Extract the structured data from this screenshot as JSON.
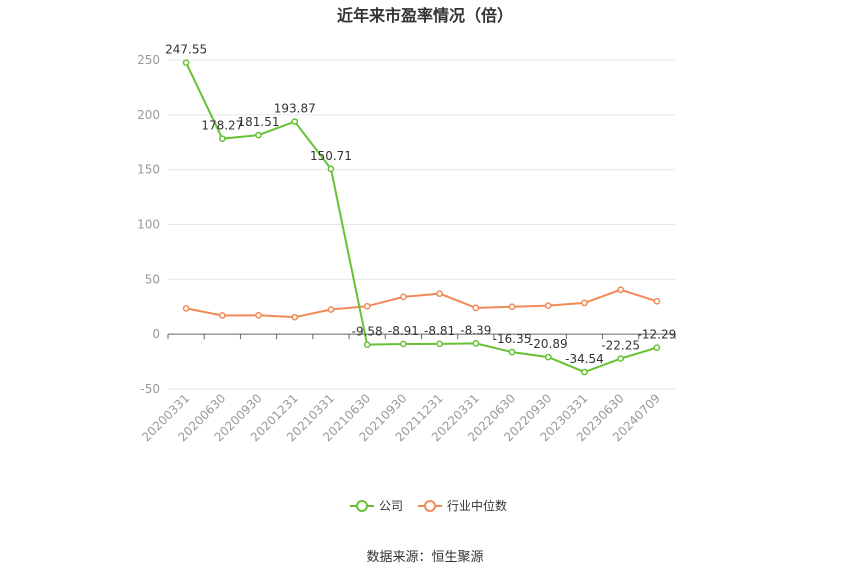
{
  "chart_data": {
    "type": "line",
    "title": "近年来市盈率情况（倍）",
    "categories": [
      "20200331",
      "20200630",
      "20200930",
      "20201231",
      "20210331",
      "20210630",
      "20210930",
      "20211231",
      "20220331",
      "20220630",
      "20220930",
      "20230331",
      "20230630",
      "20240709"
    ],
    "series": [
      {
        "name": "公司",
        "color": "#66c234",
        "values": [
          247.55,
          178.27,
          181.51,
          193.87,
          150.71,
          -9.58,
          -8.91,
          -8.81,
          -8.39,
          -16.35,
          -20.89,
          -34.54,
          -22.25,
          -12.29
        ],
        "labels": [
          "247.55",
          "178.27",
          "181.51",
          "193.87",
          "150.71",
          "-9.58",
          "-8.91",
          "-8.81",
          "-8.39",
          "-16.35",
          "-20.89",
          "-34.54",
          "-22.25",
          "-12.29"
        ]
      },
      {
        "name": "行业中位数",
        "color": "#f08a56",
        "values": [
          23.5,
          17.0,
          17.2,
          15.5,
          22.5,
          25.5,
          34.0,
          37.0,
          24.0,
          25.0,
          26.0,
          28.5,
          40.5,
          30.0
        ]
      }
    ],
    "yticks": [
      -50,
      0,
      50,
      100,
      150,
      200,
      250
    ],
    "ylim": [
      -50,
      250
    ],
    "grid": true,
    "legend": "bottom"
  },
  "footer": {
    "source": "数据来源：恒生聚源"
  }
}
